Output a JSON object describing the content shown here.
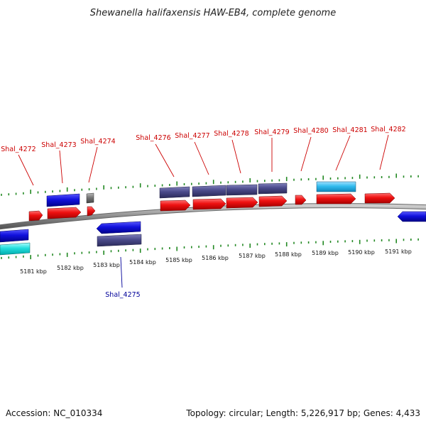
{
  "title": "Shewanella halifaxensis HAW-EB4, complete genome",
  "footer": {
    "accession": "Accession: NC_010334",
    "summary": "Topology: circular; Length: 5,226,917 bp; Genes: 4,433"
  },
  "colors": {
    "forward_cds": "#ee1111",
    "reverse_cds": "#1111dd",
    "forward_rna": "#33bbee",
    "reverse_rna": "#22dddd",
    "forward_other": "#444488",
    "reverse_other": "#444488",
    "gray_feature": "#777777",
    "backbone": "#888888",
    "ticks": "#228822",
    "forward_label": "#cc0000",
    "reverse_label": "#000099"
  },
  "scale_labels": [
    "5181 kbp",
    "5182 kbp",
    "5183 kbp",
    "5184 kbp",
    "5185 kbp",
    "5186 kbp",
    "5187 kbp",
    "5188 kbp",
    "5189 kbp",
    "5190 kbp",
    "5191 kbp"
  ],
  "gene_labels": [
    {
      "text": "Shal_4272",
      "strand": "forward"
    },
    {
      "text": "Shal_4273",
      "strand": "forward"
    },
    {
      "text": "Shal_4274",
      "strand": "forward"
    },
    {
      "text": "Shal_4275",
      "strand": "reverse"
    },
    {
      "text": "Shal_4276",
      "strand": "forward"
    },
    {
      "text": "Shal_4277",
      "strand": "forward"
    },
    {
      "text": "Shal_4278",
      "strand": "forward"
    },
    {
      "text": "Shal_4279",
      "strand": "forward"
    },
    {
      "text": "Shal_4280",
      "strand": "forward"
    },
    {
      "text": "Shal_4281",
      "strand": "forward"
    },
    {
      "text": "Shal_4282",
      "strand": "forward"
    }
  ]
}
